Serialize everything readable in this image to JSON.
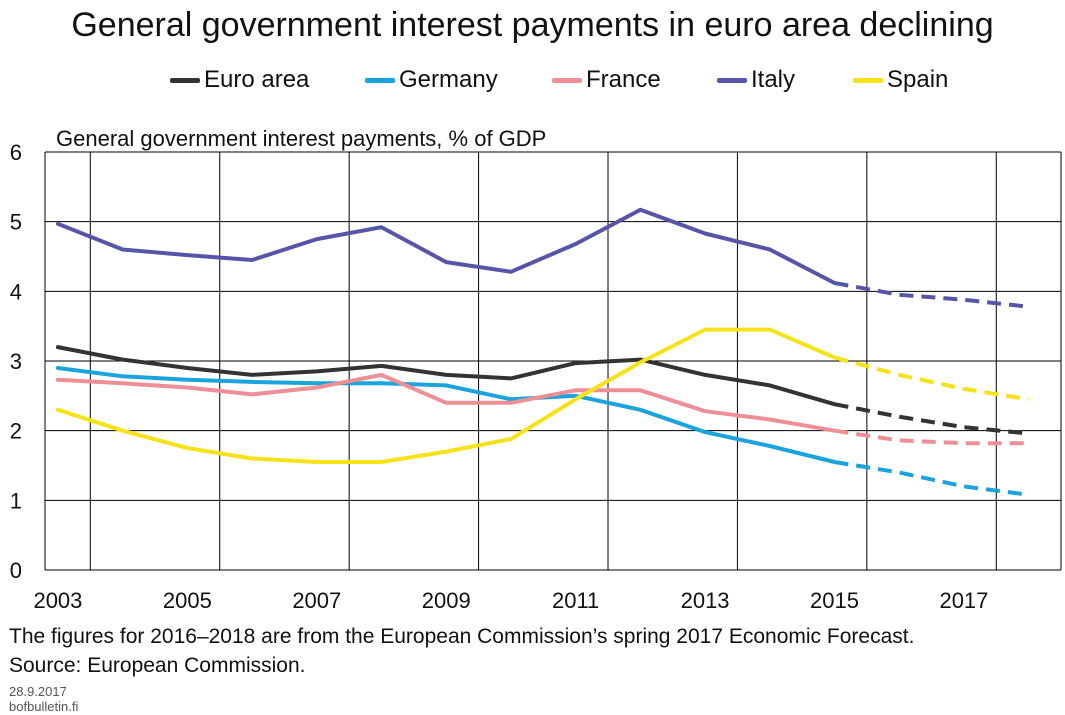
{
  "chart_data": {
    "type": "line",
    "title": "General government interest payments in euro area declining",
    "ylabel": "General government interest payments, % of GDP",
    "xlabel": "",
    "x": [
      2003,
      2004,
      2005,
      2006,
      2007,
      2008,
      2009,
      2010,
      2011,
      2012,
      2013,
      2014,
      2015,
      2016,
      2017,
      2018
    ],
    "xticks": [
      "2003",
      "2005",
      "2007",
      "2009",
      "2011",
      "2013",
      "2015",
      "2017"
    ],
    "yticks": [
      "0",
      "1",
      "2",
      "3",
      "4",
      "5",
      "6"
    ],
    "ylim": [
      0,
      6
    ],
    "xlim": [
      2002.8,
      2018.5
    ],
    "forecast_from": 2015,
    "grid": true,
    "legend_position": "top",
    "series": [
      {
        "name": "Euro area",
        "color": "#333333",
        "values": [
          3.2,
          3.02,
          2.9,
          2.8,
          2.85,
          2.93,
          2.8,
          2.75,
          2.97,
          3.02,
          2.8,
          2.65,
          2.38,
          2.2,
          2.05,
          1.96
        ]
      },
      {
        "name": "Germany",
        "color": "#1aa3dd",
        "values": [
          2.9,
          2.78,
          2.73,
          2.7,
          2.68,
          2.68,
          2.65,
          2.45,
          2.5,
          2.3,
          1.98,
          1.78,
          1.55,
          1.4,
          1.2,
          1.08
        ]
      },
      {
        "name": "France",
        "color": "#ee8f96",
        "values": [
          2.73,
          2.68,
          2.62,
          2.52,
          2.62,
          2.8,
          2.4,
          2.4,
          2.58,
          2.58,
          2.28,
          2.16,
          2.0,
          1.86,
          1.82,
          1.82
        ]
      },
      {
        "name": "Italy",
        "color": "#5656a8",
        "values": [
          4.97,
          4.6,
          4.52,
          4.45,
          4.75,
          4.92,
          4.42,
          4.28,
          4.68,
          5.17,
          4.83,
          4.6,
          4.12,
          3.95,
          3.88,
          3.78
        ]
      },
      {
        "name": "Spain",
        "color": "#f7e21a",
        "values": [
          2.3,
          2.0,
          1.75,
          1.6,
          1.55,
          1.55,
          1.7,
          1.88,
          2.45,
          2.98,
          3.45,
          3.45,
          3.05,
          2.8,
          2.6,
          2.45
        ]
      }
    ]
  },
  "footnote": "The figures for 2016–2018 are from the European Commission’s spring 2017 Economic Forecast.",
  "source": "Source: European Commission.",
  "date": "28.9.2017",
  "site": "bofbulletin.fi"
}
